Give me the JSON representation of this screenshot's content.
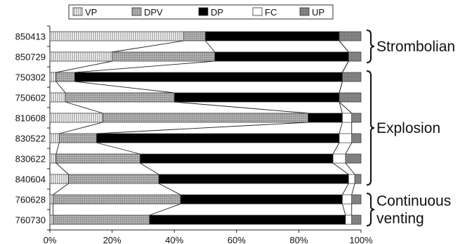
{
  "chart_data": {
    "type": "bar",
    "orientation": "horizontal",
    "stacked": true,
    "title": "",
    "xlabel": "",
    "ylabel": "",
    "xlim": [
      0,
      100
    ],
    "x_ticks": [
      "0%",
      "20%",
      "40%",
      "60%",
      "80%",
      "100%"
    ],
    "grid": false,
    "legend_position": "top",
    "categories": [
      "850413",
      "850729",
      "750302",
      "750602",
      "810608",
      "830522",
      "830622",
      "840604",
      "760628",
      "760730"
    ],
    "series": [
      {
        "name": "VP",
        "pattern": "vertical-lines",
        "color": "#ffffff",
        "values": [
          43,
          20,
          2,
          5,
          17,
          3,
          2,
          6,
          1,
          1
        ]
      },
      {
        "name": "DPV",
        "pattern": "dots",
        "color": "#9a9a9a",
        "values": [
          7,
          33,
          6,
          35,
          66,
          12,
          27,
          29,
          41,
          31
        ]
      },
      {
        "name": "DP",
        "pattern": "solid",
        "color": "#000000",
        "values": [
          43,
          43,
          86,
          53,
          11,
          78,
          62,
          61,
          52,
          63
        ]
      },
      {
        "name": "FC",
        "pattern": "blank",
        "color": "#ffffff",
        "values": [
          0,
          0,
          0,
          0,
          3,
          4,
          4,
          2,
          3,
          2
        ]
      },
      {
        "name": "UP",
        "pattern": "dense-dots",
        "color": "#9a9a9a",
        "values": [
          7,
          4,
          6,
          7,
          3,
          3,
          5,
          2,
          3,
          3
        ]
      }
    ],
    "groups": [
      {
        "label_lines": [
          "Strombolian"
        ],
        "from": "850413",
        "to": "850729"
      },
      {
        "label_lines": [
          "Explosion"
        ],
        "from": "750302",
        "to": "840604"
      },
      {
        "label_lines": [
          "Continuous",
          "venting"
        ],
        "from": "760628",
        "to": "760730"
      }
    ]
  }
}
